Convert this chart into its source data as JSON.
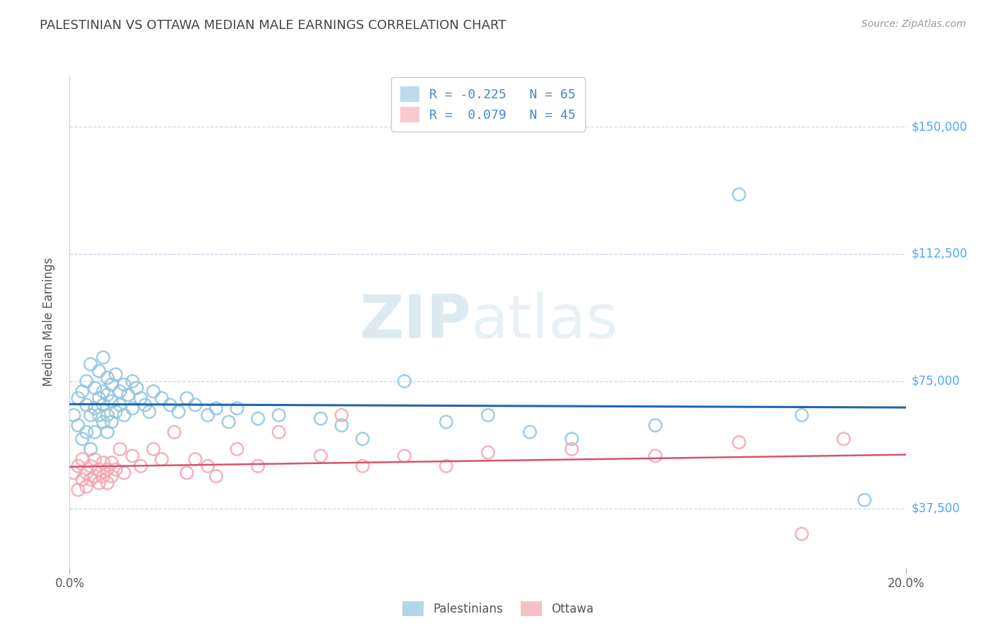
{
  "title": "PALESTINIAN VS OTTAWA MEDIAN MALE EARNINGS CORRELATION CHART",
  "source": "Source: ZipAtlas.com",
  "ylabel": "Median Male Earnings",
  "yticks": [
    37500,
    75000,
    112500,
    150000
  ],
  "ytick_labels": [
    "$37,500",
    "$75,000",
    "$112,500",
    "$150,000"
  ],
  "xlim": [
    0.0,
    0.2
  ],
  "ylim": [
    20000,
    165000
  ],
  "blue_R": -0.225,
  "blue_N": 65,
  "pink_R": 0.079,
  "pink_N": 45,
  "blue_color": "#92c5de",
  "pink_color": "#f4a6b0",
  "blue_line_color": "#2166ac",
  "pink_line_color": "#d6536d",
  "legend_blue_label": "Palestinians",
  "legend_pink_label": "Ottawa",
  "watermark_zip": "ZIP",
  "watermark_atlas": "atlas",
  "background_color": "#ffffff",
  "blue_scatter_x": [
    0.001,
    0.002,
    0.002,
    0.003,
    0.003,
    0.004,
    0.004,
    0.004,
    0.005,
    0.005,
    0.005,
    0.006,
    0.006,
    0.006,
    0.007,
    0.007,
    0.007,
    0.008,
    0.008,
    0.008,
    0.008,
    0.009,
    0.009,
    0.009,
    0.009,
    0.01,
    0.01,
    0.01,
    0.011,
    0.011,
    0.012,
    0.012,
    0.013,
    0.013,
    0.014,
    0.015,
    0.015,
    0.016,
    0.017,
    0.018,
    0.019,
    0.02,
    0.022,
    0.024,
    0.026,
    0.028,
    0.03,
    0.033,
    0.035,
    0.038,
    0.04,
    0.045,
    0.05,
    0.06,
    0.065,
    0.07,
    0.08,
    0.09,
    0.1,
    0.11,
    0.12,
    0.14,
    0.16,
    0.175,
    0.19
  ],
  "blue_scatter_y": [
    65000,
    70000,
    62000,
    72000,
    58000,
    68000,
    75000,
    60000,
    80000,
    65000,
    55000,
    73000,
    67000,
    60000,
    78000,
    65000,
    70000,
    82000,
    72000,
    63000,
    68000,
    76000,
    71000,
    65000,
    60000,
    74000,
    69000,
    63000,
    77000,
    66000,
    72000,
    68000,
    74000,
    65000,
    71000,
    75000,
    67000,
    73000,
    70000,
    68000,
    66000,
    72000,
    70000,
    68000,
    66000,
    70000,
    68000,
    65000,
    67000,
    63000,
    67000,
    64000,
    65000,
    64000,
    62000,
    58000,
    75000,
    63000,
    65000,
    60000,
    58000,
    62000,
    130000,
    65000,
    40000
  ],
  "pink_scatter_x": [
    0.001,
    0.002,
    0.002,
    0.003,
    0.003,
    0.004,
    0.004,
    0.005,
    0.005,
    0.006,
    0.006,
    0.007,
    0.007,
    0.008,
    0.008,
    0.009,
    0.009,
    0.01,
    0.01,
    0.011,
    0.012,
    0.013,
    0.015,
    0.017,
    0.02,
    0.022,
    0.025,
    0.028,
    0.03,
    0.033,
    0.035,
    0.04,
    0.045,
    0.05,
    0.06,
    0.065,
    0.07,
    0.08,
    0.09,
    0.1,
    0.12,
    0.14,
    0.16,
    0.175,
    0.185
  ],
  "pink_scatter_y": [
    48000,
    50000,
    43000,
    52000,
    46000,
    48000,
    44000,
    50000,
    46000,
    52000,
    47000,
    49000,
    45000,
    51000,
    47000,
    49000,
    45000,
    51000,
    47000,
    49000,
    55000,
    48000,
    53000,
    50000,
    55000,
    52000,
    60000,
    48000,
    52000,
    50000,
    47000,
    55000,
    50000,
    60000,
    53000,
    65000,
    50000,
    53000,
    50000,
    54000,
    55000,
    53000,
    57000,
    30000,
    58000
  ]
}
